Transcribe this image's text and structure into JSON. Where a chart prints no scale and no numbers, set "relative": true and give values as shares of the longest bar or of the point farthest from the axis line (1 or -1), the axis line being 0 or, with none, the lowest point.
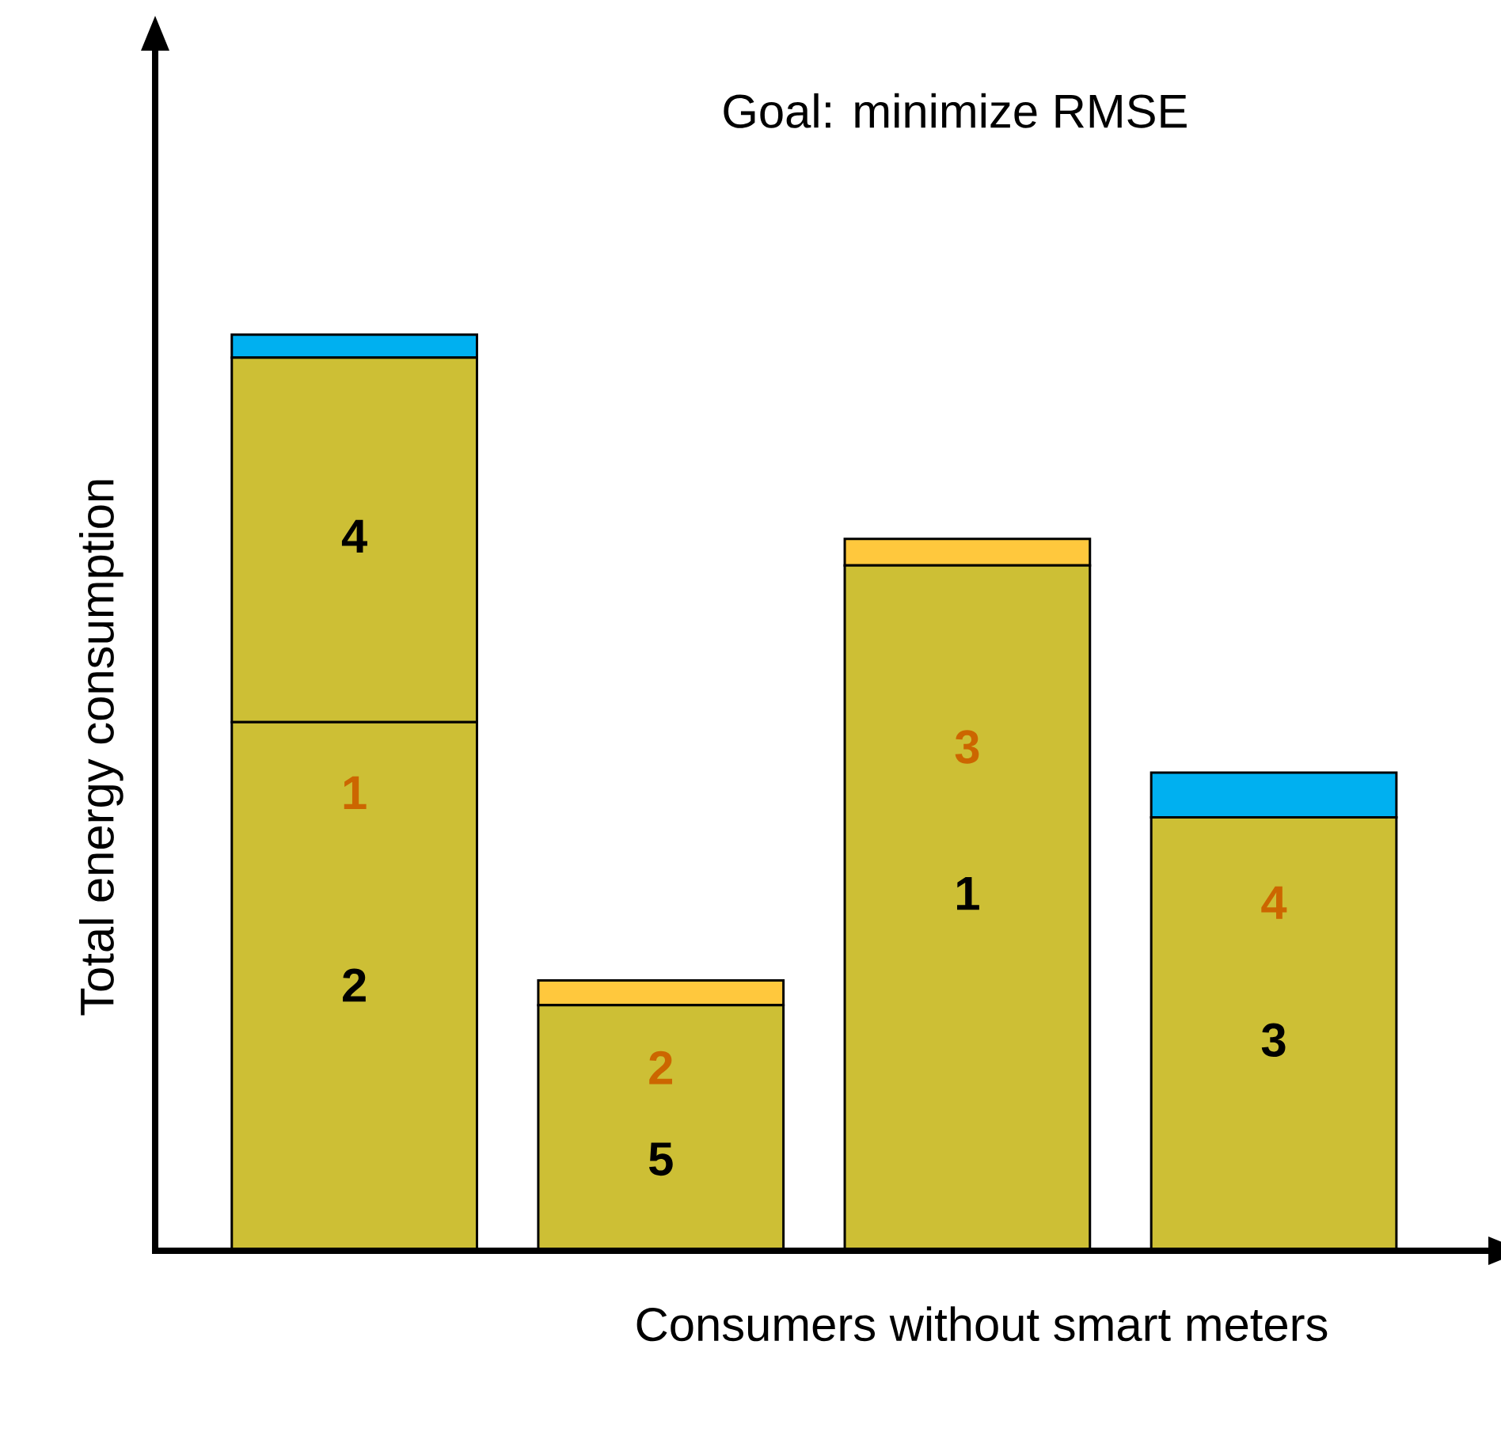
{
  "chart_data": {
    "type": "bar",
    "stacked": true,
    "relative": true,
    "title": "Goal: minimize RMSE",
    "xlabel": "Consumers without smart meters",
    "ylabel": "Total energy consumption",
    "categories": [
      null,
      null,
      null,
      null
    ],
    "series": [
      {
        "color": "#cdbf35",
        "values": [
          0.577,
          0.268,
          0.748,
          0.473
        ]
      },
      {
        "color": "#cdbf35",
        "values": [
          0.398,
          null,
          null,
          null
        ]
      },
      {
        "color": "#00b0f0",
        "values": [
          0.025,
          null,
          null,
          0.049
        ]
      },
      {
        "color": "#ffc83d",
        "values": [
          null,
          0.027,
          0.029,
          null
        ]
      }
    ],
    "annotations": [
      "4",
      "1",
      "2",
      "5",
      "2",
      "1",
      "3",
      "3",
      "4"
    ]
  }
}
